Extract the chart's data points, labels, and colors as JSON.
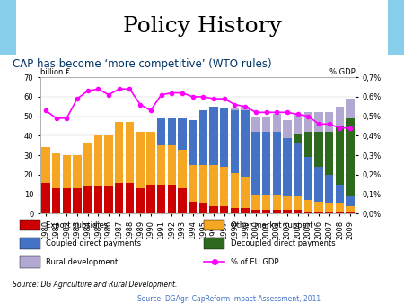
{
  "years": [
    1980,
    1981,
    1982,
    1983,
    1984,
    1985,
    1986,
    1987,
    1988,
    1989,
    1990,
    1991,
    1992,
    1993,
    1994,
    1995,
    1996,
    1997,
    1998,
    1999,
    2000,
    2001,
    2002,
    2003,
    2004,
    2005,
    2006,
    2007,
    2008,
    2009
  ],
  "export_subsidies": [
    16,
    13,
    13,
    13,
    14,
    14,
    14,
    16,
    16,
    13,
    15,
    15,
    15,
    13,
    6,
    5,
    4,
    4,
    3,
    3,
    2,
    2,
    2,
    2,
    2,
    1,
    1,
    1,
    1,
    1
  ],
  "other_market_support": [
    18,
    18,
    17,
    17,
    22,
    26,
    26,
    31,
    31,
    29,
    27,
    20,
    20,
    20,
    19,
    20,
    21,
    20,
    18,
    16,
    8,
    8,
    8,
    7,
    7,
    6,
    5,
    4,
    4,
    3
  ],
  "coupled_direct": [
    0,
    0,
    0,
    0,
    0,
    0,
    0,
    0,
    0,
    0,
    0,
    14,
    14,
    16,
    23,
    28,
    30,
    30,
    32,
    34,
    32,
    32,
    32,
    30,
    27,
    22,
    18,
    15,
    10,
    5
  ],
  "decoupled_direct": [
    0,
    0,
    0,
    0,
    0,
    0,
    0,
    0,
    0,
    0,
    0,
    0,
    0,
    0,
    0,
    0,
    0,
    0,
    0,
    0,
    0,
    0,
    0,
    0,
    5,
    13,
    18,
    22,
    30,
    40
  ],
  "rural_development": [
    0,
    0,
    0,
    0,
    0,
    0,
    0,
    0,
    0,
    0,
    0,
    0,
    0,
    0,
    0,
    0,
    0,
    0,
    1,
    2,
    8,
    8,
    9,
    9,
    10,
    10,
    10,
    10,
    10,
    10
  ],
  "pct_gdp": [
    0.53,
    0.49,
    0.49,
    0.59,
    0.63,
    0.64,
    0.61,
    0.64,
    0.64,
    0.56,
    0.53,
    0.61,
    0.62,
    0.62,
    0.6,
    0.6,
    0.59,
    0.59,
    0.56,
    0.55,
    0.52,
    0.52,
    0.52,
    0.52,
    0.51,
    0.5,
    0.46,
    0.46,
    0.44,
    0.44
  ],
  "title": "Policy History",
  "subtitle": "CAP has become ‘more competitive’ (WTO rules)",
  "ylabel_left": "billion €",
  "ylabel_right": "% GDP",
  "ylim_left": [
    0,
    70
  ],
  "ytick_labels_right": [
    "0,0%",
    "0,1%",
    "0,2%",
    "0,3%",
    "0,4%",
    "0,5%",
    "0,6%",
    "0,7%"
  ],
  "source_left": "Source: DG Agriculture and Rural Development.",
  "source_right": "Source: DGAgri CapReform Impact Assessment, 2011",
  "color_export": "#cc0000",
  "color_other_market": "#f5a623",
  "color_coupled": "#4472c4",
  "color_decoupled": "#2d6a1e",
  "color_rural": "#b3a8d1",
  "color_gdp_line": "#ff00ff",
  "subtitle_bg": "#87ceeb",
  "border_color": "#aaaaaa"
}
